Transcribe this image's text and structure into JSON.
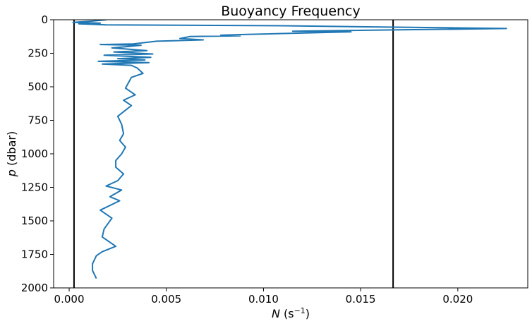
{
  "chart_data": {
    "type": "line",
    "title": "Buoyancy Frequency",
    "xlabel": {
      "var": "N",
      "unit_prefix": " (s",
      "unit_sup": "−1",
      "unit_suffix": ")"
    },
    "ylabel": {
      "var": "p",
      "unit": " (dbar)"
    },
    "xlim": [
      -0.0008,
      0.0236
    ],
    "ylim": [
      2000,
      0
    ],
    "y_inverted": true,
    "xticks": [
      0.0,
      0.005,
      0.01,
      0.015,
      0.02
    ],
    "xtick_labels": [
      "0.000",
      "0.005",
      "0.010",
      "0.015",
      "0.020"
    ],
    "yticks": [
      0,
      250,
      500,
      750,
      1000,
      1250,
      1500,
      1750,
      2000
    ],
    "ytick_labels": [
      "0",
      "250",
      "500",
      "750",
      "1000",
      "1250",
      "1500",
      "1750",
      "2000"
    ],
    "grid": false,
    "legend": "none",
    "vlines": [
      {
        "x": 0.00025,
        "color": "#000000"
      },
      {
        "x": 0.01667,
        "color": "#000000"
      }
    ],
    "series": [
      {
        "color": "#1f77b4",
        "x": [
          0.0019,
          0.0012,
          0.0002,
          0.0016,
          0.0005,
          0.0019,
          0.011,
          0.0225,
          0.0115,
          0.0145,
          0.009,
          0.0078,
          0.0088,
          0.0062,
          0.0057,
          0.0069,
          0.0045,
          0.0033,
          0.0016,
          0.0037,
          0.003,
          0.0022,
          0.004,
          0.0023,
          0.0043,
          0.0018,
          0.0042,
          0.0025,
          0.0039,
          0.0015,
          0.0041,
          0.0017,
          0.0032,
          0.0035,
          0.0038,
          0.0032,
          0.0029,
          0.0034,
          0.0028,
          0.0032,
          0.0025,
          0.0027,
          0.0028,
          0.0026,
          0.0029,
          0.0027,
          0.0024,
          0.0024,
          0.0028,
          0.0025,
          0.0019,
          0.0027,
          0.0021,
          0.0026,
          0.0016,
          0.0022,
          0.0018,
          0.0017,
          0.0024,
          0.0017,
          0.0014,
          0.0012,
          0.0012,
          0.0014
        ],
        "y": [
          0,
          10,
          20,
          25,
          30,
          38,
          45,
          65,
          85,
          90,
          110,
          115,
          120,
          125,
          140,
          150,
          160,
          180,
          185,
          190,
          200,
          210,
          230,
          240,
          255,
          265,
          280,
          290,
          300,
          310,
          320,
          330,
          340,
          360,
          400,
          430,
          510,
          560,
          600,
          640,
          720,
          780,
          850,
          900,
          950,
          1000,
          1050,
          1100,
          1150,
          1200,
          1240,
          1270,
          1320,
          1350,
          1420,
          1480,
          1560,
          1620,
          1690,
          1730,
          1760,
          1820,
          1870,
          1930
        ]
      }
    ]
  }
}
